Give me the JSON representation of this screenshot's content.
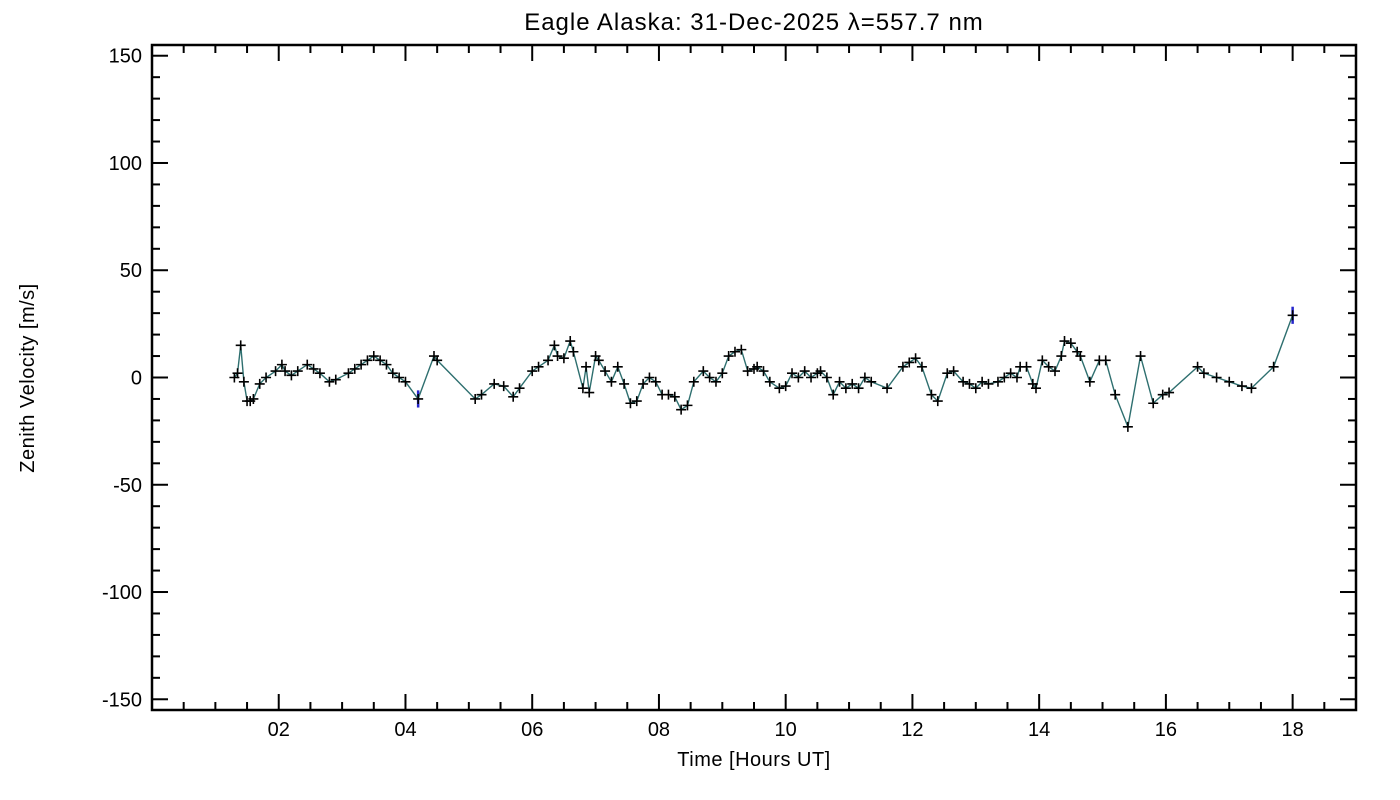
{
  "chart_data": {
    "type": "line",
    "title": "Eagle Alaska: 31-Dec-2025 λ=557.7 nm",
    "xlabel": "Time [Hours UT]",
    "ylabel": "Zenith Velocity [m/s]",
    "xlim": [
      0,
      19
    ],
    "ylim": [
      -155,
      155
    ],
    "xticks": [
      {
        "v": 2,
        "label": "02"
      },
      {
        "v": 4,
        "label": "04"
      },
      {
        "v": 6,
        "label": "06"
      },
      {
        "v": 8,
        "label": "08"
      },
      {
        "v": 10,
        "label": "10"
      },
      {
        "v": 12,
        "label": "12"
      },
      {
        "v": 14,
        "label": "14"
      },
      {
        "v": 16,
        "label": "16"
      },
      {
        "v": 18,
        "label": "18"
      }
    ],
    "yticks": [
      {
        "v": -150,
        "label": "-150"
      },
      {
        "v": -100,
        "label": "-100"
      },
      {
        "v": -50,
        "label": "-50"
      },
      {
        "v": 0,
        "label": "0"
      },
      {
        "v": 50,
        "label": "50"
      },
      {
        "v": 100,
        "label": "100"
      },
      {
        "v": 150,
        "label": "150"
      }
    ],
    "x_minor_step": 0.5,
    "y_minor_step": 10,
    "grid": false,
    "legend": "none",
    "line_color": "#2e6f6f",
    "marker_color": "#000000",
    "error_color": "#2626cc",
    "axis_color": "#000000",
    "background": "#ffffff",
    "points": [
      [
        1.3,
        0
      ],
      [
        1.35,
        2
      ],
      [
        1.4,
        15
      ],
      [
        1.45,
        -2
      ],
      [
        1.5,
        -11
      ],
      [
        1.55,
        -11
      ],
      [
        1.6,
        -10
      ],
      [
        1.7,
        -3
      ],
      [
        1.8,
        0
      ],
      [
        1.95,
        3
      ],
      [
        2.05,
        6
      ],
      [
        2.1,
        3
      ],
      [
        2.2,
        1
      ],
      [
        2.3,
        3
      ],
      [
        2.45,
        6
      ],
      [
        2.55,
        4
      ],
      [
        2.65,
        2
      ],
      [
        2.8,
        -2
      ],
      [
        2.9,
        -1
      ],
      [
        3.1,
        2
      ],
      [
        3.2,
        4
      ],
      [
        3.3,
        6
      ],
      [
        3.4,
        8
      ],
      [
        3.5,
        10
      ],
      [
        3.6,
        8
      ],
      [
        3.7,
        6
      ],
      [
        3.8,
        2
      ],
      [
        3.9,
        0
      ],
      [
        4.0,
        -2
      ],
      [
        4.2,
        -10
      ],
      [
        4.45,
        10
      ],
      [
        4.5,
        8
      ],
      [
        5.1,
        -10
      ],
      [
        5.2,
        -8
      ],
      [
        5.4,
        -3
      ],
      [
        5.55,
        -4
      ],
      [
        5.7,
        -9
      ],
      [
        5.8,
        -5
      ],
      [
        6.0,
        3
      ],
      [
        6.1,
        5
      ],
      [
        6.25,
        8
      ],
      [
        6.35,
        15
      ],
      [
        6.4,
        10
      ],
      [
        6.5,
        9
      ],
      [
        6.6,
        17
      ],
      [
        6.65,
        12
      ],
      [
        6.8,
        -5
      ],
      [
        6.85,
        5
      ],
      [
        6.9,
        -7
      ],
      [
        7.0,
        10
      ],
      [
        7.05,
        8
      ],
      [
        7.15,
        3
      ],
      [
        7.25,
        -2
      ],
      [
        7.35,
        5
      ],
      [
        7.45,
        -3
      ],
      [
        7.55,
        -12
      ],
      [
        7.65,
        -11
      ],
      [
        7.75,
        -3
      ],
      [
        7.85,
        0
      ],
      [
        7.95,
        -2
      ],
      [
        8.05,
        -8
      ],
      [
        8.15,
        -8
      ],
      [
        8.25,
        -9
      ],
      [
        8.35,
        -15
      ],
      [
        8.45,
        -13
      ],
      [
        8.55,
        -2
      ],
      [
        8.7,
        3
      ],
      [
        8.8,
        0
      ],
      [
        8.9,
        -2
      ],
      [
        9.0,
        2
      ],
      [
        9.1,
        10
      ],
      [
        9.2,
        12
      ],
      [
        9.3,
        13
      ],
      [
        9.4,
        3
      ],
      [
        9.5,
        4
      ],
      [
        9.55,
        5
      ],
      [
        9.65,
        3
      ],
      [
        9.75,
        -2
      ],
      [
        9.9,
        -5
      ],
      [
        10.0,
        -4
      ],
      [
        10.1,
        2
      ],
      [
        10.2,
        0
      ],
      [
        10.3,
        3
      ],
      [
        10.4,
        0
      ],
      [
        10.5,
        2
      ],
      [
        10.55,
        3
      ],
      [
        10.65,
        0
      ],
      [
        10.75,
        -8
      ],
      [
        10.85,
        -2
      ],
      [
        10.95,
        -5
      ],
      [
        11.05,
        -3
      ],
      [
        11.15,
        -5
      ],
      [
        11.25,
        0
      ],
      [
        11.35,
        -2
      ],
      [
        11.6,
        -5
      ],
      [
        11.85,
        5
      ],
      [
        11.95,
        7
      ],
      [
        12.05,
        9
      ],
      [
        12.15,
        5
      ],
      [
        12.3,
        -8
      ],
      [
        12.4,
        -11
      ],
      [
        12.55,
        2
      ],
      [
        12.65,
        3
      ],
      [
        12.8,
        -2
      ],
      [
        12.9,
        -3
      ],
      [
        13.0,
        -5
      ],
      [
        13.1,
        -2
      ],
      [
        13.2,
        -3
      ],
      [
        13.35,
        -2
      ],
      [
        13.45,
        0
      ],
      [
        13.55,
        2
      ],
      [
        13.65,
        0
      ],
      [
        13.7,
        5
      ],
      [
        13.8,
        5
      ],
      [
        13.9,
        -3
      ],
      [
        13.95,
        -5
      ],
      [
        14.05,
        8
      ],
      [
        14.15,
        5
      ],
      [
        14.25,
        3
      ],
      [
        14.35,
        10
      ],
      [
        14.4,
        17
      ],
      [
        14.5,
        16
      ],
      [
        14.6,
        12
      ],
      [
        14.65,
        10
      ],
      [
        14.8,
        -2
      ],
      [
        14.95,
        8
      ],
      [
        15.05,
        8
      ],
      [
        15.2,
        -8
      ],
      [
        15.4,
        -23
      ],
      [
        15.6,
        10
      ],
      [
        15.8,
        -12
      ],
      [
        15.95,
        -8
      ],
      [
        16.05,
        -7
      ],
      [
        16.5,
        5
      ],
      [
        16.6,
        2
      ],
      [
        16.8,
        0
      ],
      [
        17.0,
        -2
      ],
      [
        17.2,
        -4
      ],
      [
        17.35,
        -5
      ],
      [
        17.7,
        5
      ],
      [
        18.0,
        29
      ]
    ],
    "error_bars": [
      {
        "x": 4.2,
        "y": -10,
        "e": 4
      },
      {
        "x": 18.0,
        "y": 29,
        "e": 4
      }
    ]
  }
}
